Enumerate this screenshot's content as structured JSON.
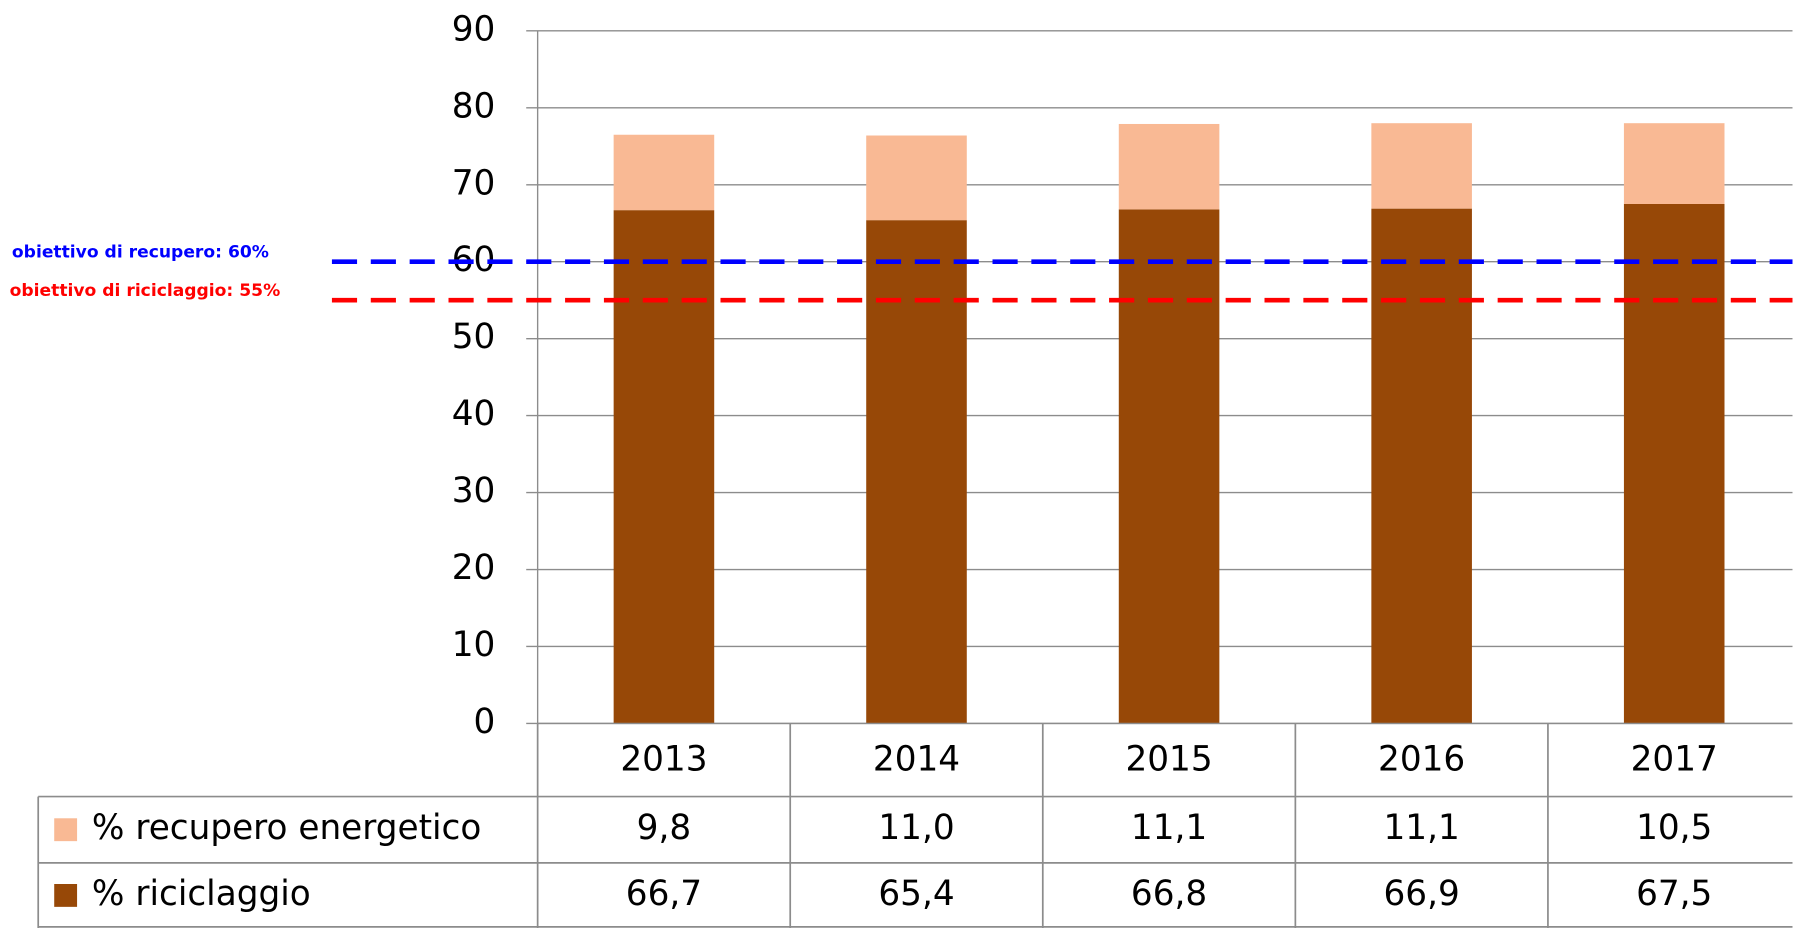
{
  "chart_data": {
    "type": "bar",
    "stacked": true,
    "categories": [
      "2013",
      "2014",
      "2015",
      "2016",
      "2017"
    ],
    "series": [
      {
        "name": "% riciclaggio",
        "color": "#974807",
        "values": [
          66.7,
          65.4,
          66.8,
          66.9,
          67.5
        ],
        "value_labels": [
          "66,7",
          "65,4",
          "66,8",
          "66,9",
          "67,5"
        ]
      },
      {
        "name": "% recupero energetico",
        "color": "#f9b994",
        "values": [
          9.8,
          11.0,
          11.1,
          11.1,
          10.5
        ],
        "value_labels": [
          "9,8",
          "11,0",
          "11,1",
          "11,1",
          "10,5"
        ]
      }
    ],
    "ylim": [
      0,
      90
    ],
    "yticks": [
      0,
      10,
      20,
      30,
      40,
      50,
      60,
      70,
      80,
      90
    ],
    "grid": true,
    "data_table": true,
    "reference_lines": [
      {
        "label": "obiettivo di recupero: 60%",
        "value": 60,
        "color": "#0000ff"
      },
      {
        "label": "obiettivo di riciclaggio: 55%",
        "value": 55,
        "color": "#ff0000"
      }
    ]
  }
}
